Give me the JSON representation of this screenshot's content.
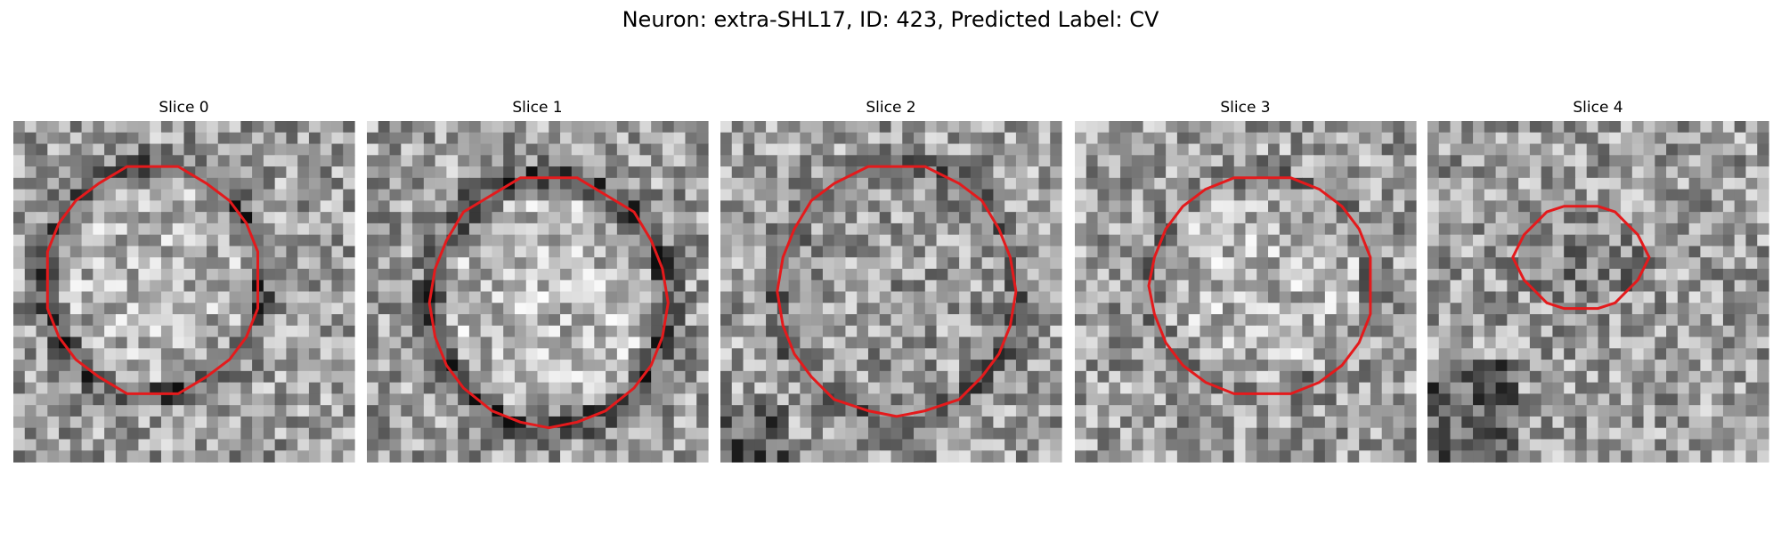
{
  "header": {
    "title": "Neuron: extra-SHL17, ID: 423, Predicted Label: CV"
  },
  "panels": [
    {
      "title": "Slice 0"
    },
    {
      "title": "Slice 1"
    },
    {
      "title": "Slice 2"
    },
    {
      "title": "Slice 3"
    },
    {
      "title": "Slice 4"
    }
  ]
}
